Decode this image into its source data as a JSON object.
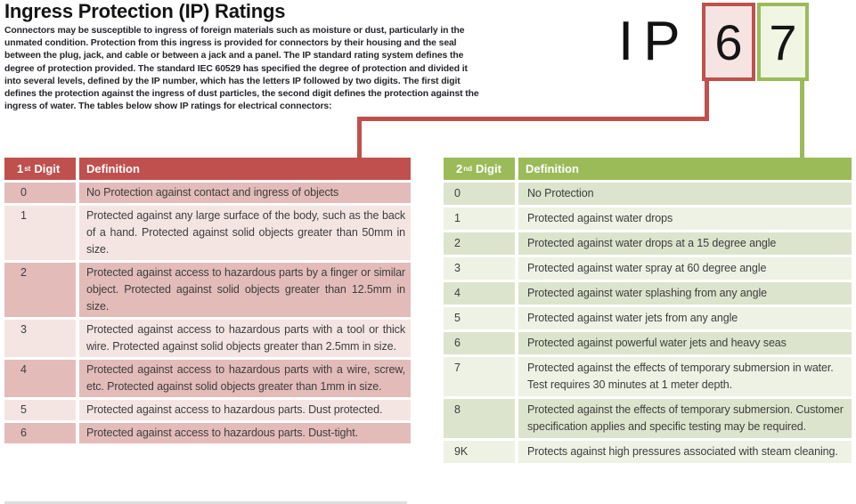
{
  "page": {
    "title": "Ingress Protection (IP) Ratings",
    "intro": "Connectors may be susceptible to ingress of foreign materials such as moisture or dust, particularly in the unmated condition. Protection from this ingress is provided for connectors by their housing and the seal between the plug, jack, and cable or between a jack and a panel. The IP standard rating system defines the degree of protection provided. The standard IEC 60529 has specified the degree of protection and divided it into several levels, defined by the IP number, which has the letters IP followed by two digits. The first digit defines the protection against the ingress of dust particles, the second digit defines the protection against the ingress of water. The tables below show IP ratings for electrical connectors:"
  },
  "ip_graphic": {
    "prefix": "IP",
    "first_digit": "6",
    "second_digit": "7"
  },
  "colors": {
    "red": "#c0504d",
    "red_row_dark": "#e3bcba",
    "red_row_light": "#f4e5e3",
    "red_box_fill": "#f6e4e3",
    "green": "#9bbb59",
    "green_row_dark": "#dde4cd",
    "green_row_light": "#eef2e4",
    "green_box_fill": "#f0f5e4"
  },
  "first_digit_table": {
    "header": {
      "num": "1",
      "sup": "st",
      "word": "Digit",
      "definition": "Definition"
    },
    "rows": [
      {
        "digit": "0",
        "definition": "No Protection against contact and ingress of objects"
      },
      {
        "digit": "1",
        "definition": "Protected against any large surface of the body, such as the back of a hand. Protected against solid objects greater than 50mm in size."
      },
      {
        "digit": "2",
        "definition": "Protected against access to hazardous parts by a finger or similar object. Protected against solid objects greater than 12.5mm in size."
      },
      {
        "digit": "3",
        "definition": "Protected against access to hazardous parts with a tool or thick wire. Protected against solid objects greater than 2.5mm in size."
      },
      {
        "digit": "4",
        "definition": "Protected against access to hazardous parts with a wire, screw, etc. Protected against solid objects greater than 1mm in size."
      },
      {
        "digit": "5",
        "definition": "Protected against access to hazardous parts. Dust protected."
      },
      {
        "digit": "6",
        "definition": "Protected against access to hazardous parts. Dust-tight."
      }
    ]
  },
  "second_digit_table": {
    "header": {
      "num": "2",
      "sup": "nd",
      "word": "Digit",
      "definition": "Definition"
    },
    "rows": [
      {
        "digit": "0",
        "definition": "No Protection"
      },
      {
        "digit": "1",
        "definition": "Protected against water drops"
      },
      {
        "digit": "2",
        "definition": "Protected against water drops at a 15 degree angle"
      },
      {
        "digit": "3",
        "definition": "Protected against water spray at 60 degree angle"
      },
      {
        "digit": "4",
        "definition": "Protected against water splashing from any angle"
      },
      {
        "digit": "5",
        "definition": "Protected against water jets from any angle"
      },
      {
        "digit": "6",
        "definition": "Protected against powerful water jets and heavy seas"
      },
      {
        "digit": "7",
        "definition": "Protected against the effects of temporary submersion in water. Test requires 30 minutes at 1 meter depth."
      },
      {
        "digit": "8",
        "definition": "Protected against the effects of temporary submersion. Customer specification applies and specific testing may be required."
      },
      {
        "digit": "9K",
        "definition": "Protects against high pressures associated with steam cleaning."
      }
    ]
  }
}
